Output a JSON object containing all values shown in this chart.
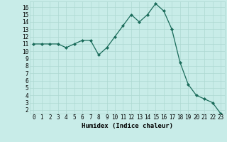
{
  "x": [
    0,
    1,
    2,
    3,
    4,
    5,
    6,
    7,
    8,
    9,
    10,
    11,
    12,
    13,
    14,
    15,
    16,
    17,
    18,
    19,
    20,
    21,
    22,
    23
  ],
  "y": [
    11,
    11,
    11,
    11,
    10.5,
    11,
    11.5,
    11.5,
    9.5,
    10.5,
    12,
    13.5,
    15,
    14,
    15,
    16.5,
    15.5,
    13,
    8.5,
    5.5,
    4,
    3.5,
    3,
    1.5
  ],
  "line_color": "#1a6b5a",
  "marker": "D",
  "markersize": 2,
  "linewidth": 0.9,
  "bg_color": "#c8ece8",
  "grid_color": "#aed8d2",
  "xlabel": "Humidex (Indice chaleur)",
  "xlabel_fontsize": 6.5,
  "ytick_vals": [
    2,
    3,
    4,
    5,
    6,
    7,
    8,
    9,
    10,
    11,
    12,
    13,
    14,
    15,
    16
  ],
  "ylim": [
    1.5,
    16.8
  ],
  "xlim": [
    -0.5,
    23.5
  ],
  "tick_fontsize": 5.5
}
